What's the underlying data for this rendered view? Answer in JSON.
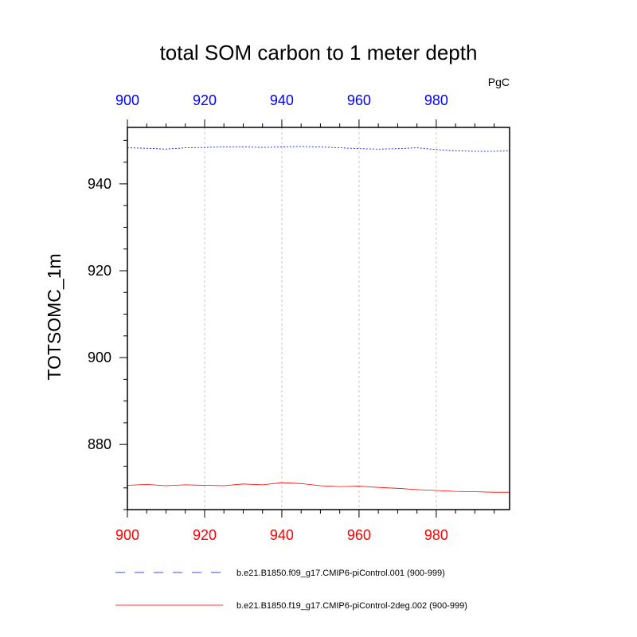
{
  "chart_data": {
    "type": "line",
    "title": "total SOM carbon to 1 meter depth",
    "units": "PgC",
    "ylabel": "TOTSOMC_1m",
    "xlim": [
      900,
      999
    ],
    "ylim": [
      865,
      953
    ],
    "x_ticks": [
      "900",
      "920",
      "940",
      "960",
      "980"
    ],
    "y_ticks": [
      "880",
      "900",
      "920",
      "940"
    ],
    "grid_x": true,
    "colors": {
      "top_axis": "#0000ff",
      "bottom_axis": "#ff0000"
    },
    "series": [
      {
        "name": "b.e21.B1850.f09_g17.CMIP6-piControl.001 (900-999)",
        "color": "#0000ff",
        "dash": "dashed",
        "x": [
          900,
          905,
          910,
          915,
          920,
          925,
          930,
          935,
          940,
          945,
          950,
          955,
          960,
          965,
          970,
          975,
          980,
          985,
          990,
          995,
          999
        ],
        "y": [
          948.3,
          948.2,
          948.0,
          948.3,
          948.4,
          948.5,
          948.5,
          948.4,
          948.5,
          948.6,
          948.5,
          948.3,
          948.1,
          948.0,
          948.1,
          948.3,
          947.9,
          947.6,
          947.5,
          947.5,
          947.6
        ]
      },
      {
        "name": "b.e21.B1850.f19_g17.CMIP6-piControl-2deg.002 (900-999)",
        "color": "#ff0000",
        "dash": "solid",
        "x": [
          900,
          905,
          910,
          915,
          920,
          925,
          930,
          935,
          940,
          945,
          950,
          955,
          960,
          965,
          970,
          975,
          980,
          985,
          990,
          995,
          999
        ],
        "y": [
          870.6,
          870.8,
          870.5,
          870.7,
          870.6,
          870.5,
          870.9,
          870.7,
          871.2,
          871.0,
          870.5,
          870.3,
          870.4,
          870.1,
          869.9,
          869.6,
          869.4,
          869.2,
          869.1,
          869.0,
          869.0
        ]
      }
    ]
  }
}
